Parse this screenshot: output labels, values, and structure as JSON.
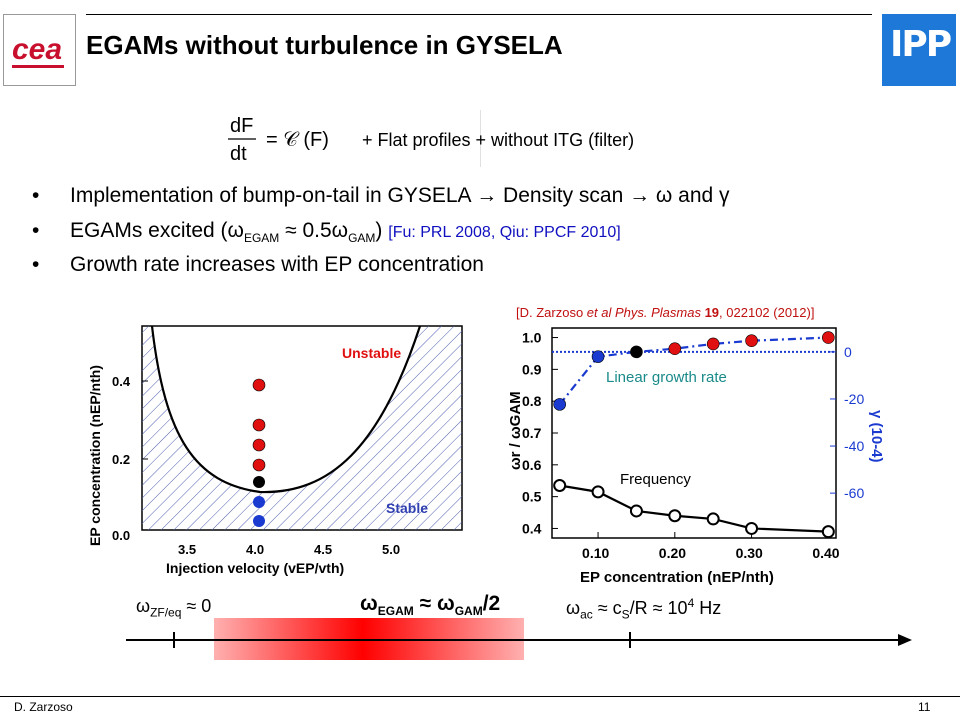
{
  "title": "EGAMs without turbulence in GYSELA",
  "equation": {
    "lhs": "dF / dt = C (F)",
    "conditions": "+  Flat profiles + without ITG (filter)"
  },
  "bullets": [
    {
      "text": "Implementation of bump-on-tail in GYSELA → Density scan → ω and γ"
    },
    {
      "pre": "EGAMs excited (ω",
      "sub1": "EGAM",
      "mid": " ≈ 0.5ω",
      "sub2": "GAM",
      "post": ") ",
      "ref": "[Fu: PRL 2008, Qiu: PPCF 2010]"
    },
    {
      "text": "Growth rate increases with EP concentration"
    }
  ],
  "citation": {
    "pre": "[D. Zarzoso ",
    "italic": "et al Phys. Plasmas",
    "bold": "19",
    "post": ", 022102 (2012)]"
  },
  "stability_plot": {
    "ylabel": "EP concentration (nEP/nth)",
    "xlabel": "Injection velocity (vEP/vth)",
    "xticks": [
      "3.5",
      "4.0",
      "4.5",
      "5.0"
    ],
    "yticks": [
      "0.0",
      "0.2",
      "0.4"
    ],
    "unstable_label": "Unstable",
    "stable_label": "Stable"
  },
  "chart_data": {
    "type": "line",
    "xlabel": "EP concentration (nEP/nth)",
    "ylabel": "ωr / ωGAM",
    "ylabel_right": "γ (10-4)",
    "x": [
      0.05,
      0.1,
      0.15,
      0.2,
      0.25,
      0.3,
      0.4
    ],
    "xticks": [
      "0.10",
      "0.20",
      "0.30",
      "0.40"
    ],
    "yticks": [
      "0.4",
      "0.5",
      "0.6",
      "0.7",
      "0.8",
      "0.9",
      "1.0"
    ],
    "yticks_right": [
      "-60",
      "-40",
      "-20",
      "0"
    ],
    "ylim": [
      0.37,
      1.03
    ],
    "series": [
      {
        "name": "Frequency",
        "values": [
          0.535,
          0.515,
          0.455,
          0.44,
          0.43,
          0.4,
          0.39
        ]
      },
      {
        "name": "Linear growth rate",
        "values": [
          0.79,
          0.94,
          0.955,
          0.965,
          0.98,
          0.99,
          1.0
        ]
      }
    ],
    "point_colors": [
      "#1a3ad0",
      "#1a3ad0",
      "#000000",
      "#e01010",
      "#e01010",
      "#e01010",
      "#e01010"
    ],
    "zero_line": 0.955
  },
  "axis": {
    "zf_label": "ω",
    "zf_sub": "ZF/eq",
    "zf_rest": " ≈ 0",
    "egam_label": "ω",
    "egam_sub": "EGAM",
    "egam_mid": " ≈ ω",
    "egam_sub2": "GAM",
    "egam_rest": "/2",
    "ac_label": "ω",
    "ac_sub": "ac",
    "ac_rest1": " ≈ c",
    "ac_sub2": "S",
    "ac_rest2": "/R ≈ 10",
    "ac_sup": "4",
    "ac_rest3": " Hz"
  },
  "footer": {
    "author": "D. Zarzoso",
    "page": "11"
  },
  "colors": {
    "ipp_blue": "#1e78d7",
    "cea_red": "#c8102e",
    "ref_blue": "#1010c0"
  }
}
